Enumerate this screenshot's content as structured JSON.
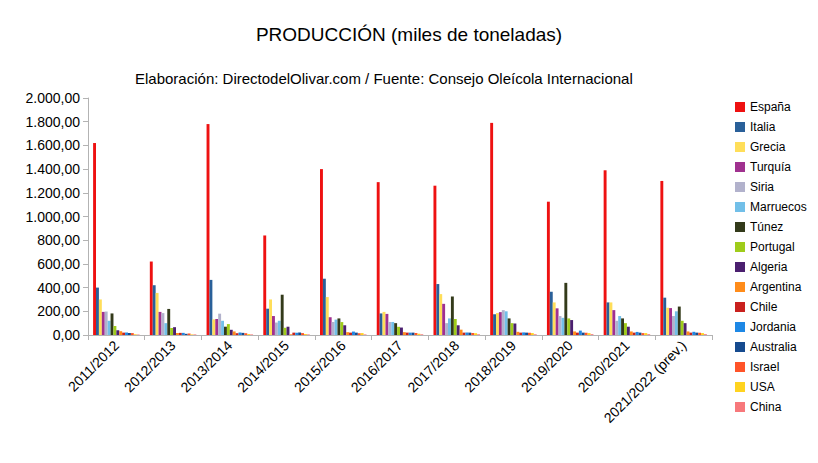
{
  "chart_data": {
    "type": "bar",
    "title": "PRODUCCIÓN (miles de toneladas)",
    "subtitle": "Elaboración: DirectodelOlivar.com / Fuente: Consejo Oleícola Internacional",
    "categories": [
      "2011/2012",
      "2012/2013",
      "2013/2014",
      "2014/2015",
      "2015/2016",
      "2016/2017",
      "2017/2018",
      "2018/2019",
      "2019/2020",
      "2020/2021",
      "2021/2022 (prev.)"
    ],
    "series": [
      {
        "name": "España",
        "color": "#ee1111",
        "values": [
          1620,
          620,
          1780,
          840,
          1400,
          1290,
          1260,
          1790,
          1125,
          1390,
          1300
        ]
      },
      {
        "name": "Italia",
        "color": "#2a6099",
        "values": [
          400,
          420,
          465,
          222,
          475,
          182,
          430,
          175,
          365,
          275,
          315
        ]
      },
      {
        "name": "Grecia",
        "color": "#ffde59",
        "values": [
          300,
          355,
          132,
          300,
          320,
          195,
          345,
          185,
          275,
          275,
          230
        ]
      },
      {
        "name": "Turquía",
        "color": "#a0318f",
        "values": [
          195,
          195,
          135,
          160,
          150,
          178,
          263,
          193,
          225,
          210,
          227
        ]
      },
      {
        "name": "Siria",
        "color": "#b2b2cc",
        "values": [
          198,
          185,
          180,
          105,
          110,
          110,
          100,
          210,
          160,
          120,
          160
        ]
      },
      {
        "name": "Marruecos",
        "color": "#72bfe8",
        "values": [
          120,
          100,
          120,
          120,
          130,
          110,
          140,
          200,
          145,
          160,
          200
        ]
      },
      {
        "name": "Túnez",
        "color": "#333a1a",
        "values": [
          182,
          220,
          70,
          340,
          140,
          100,
          325,
          140,
          440,
          140,
          240
        ]
      },
      {
        "name": "Portugal",
        "color": "#9fcc1b",
        "values": [
          76,
          59,
          92,
          61,
          109,
          69,
          135,
          100,
          140,
          100,
          120
        ]
      },
      {
        "name": "Algeria",
        "color": "#4b1f6f",
        "values": [
          40,
          66,
          44,
          70,
          82,
          63,
          82,
          97,
          126,
          70,
          100
        ]
      },
      {
        "name": "Argentina",
        "color": "#ff8c1a",
        "values": [
          32,
          17,
          30,
          6,
          24,
          24,
          45,
          27,
          30,
          30,
          30
        ]
      },
      {
        "name": "Chile",
        "color": "#c9211e",
        "values": [
          20,
          18,
          15,
          20,
          20,
          20,
          20,
          20,
          20,
          20,
          20
        ]
      },
      {
        "name": "Jordania",
        "color": "#1e88e5",
        "values": [
          21,
          18,
          21,
          19,
          29,
          20,
          21,
          22,
          37,
          26,
          27
        ]
      },
      {
        "name": "Australia",
        "color": "#164b8f",
        "values": [
          17,
          10,
          18,
          21,
          20,
          20,
          20,
          20,
          20,
          20,
          20
        ]
      },
      {
        "name": "Israel",
        "color": "#ff5429",
        "values": [
          16,
          13,
          15,
          16,
          15,
          17,
          17,
          19,
          19,
          16,
          19
        ]
      },
      {
        "name": "USA",
        "color": "#ffd320",
        "values": [
          6,
          5,
          8,
          8,
          16,
          11,
          15,
          16,
          16,
          16,
          16
        ]
      },
      {
        "name": "China",
        "color": "#f7787b",
        "values": [
          4,
          5,
          5,
          5,
          5,
          6,
          6,
          6,
          7,
          7,
          7
        ]
      }
    ],
    "ylim": [
      0,
      2000
    ],
    "yticks": [
      {
        "value": 0,
        "label": "0,00"
      },
      {
        "value": 200,
        "label": "200,00"
      },
      {
        "value": 400,
        "label": "400,00"
      },
      {
        "value": 600,
        "label": "600,00"
      },
      {
        "value": 800,
        "label": "800,00"
      },
      {
        "value": 1000,
        "label": "1.000,00"
      },
      {
        "value": 1200,
        "label": "1.200,00"
      },
      {
        "value": 1400,
        "label": "1.400,00"
      },
      {
        "value": 1600,
        "label": "1.600,00"
      },
      {
        "value": 1800,
        "label": "1.800,00"
      },
      {
        "value": 2000,
        "label": "2.000,00"
      }
    ],
    "grid": false,
    "legend": "right"
  }
}
